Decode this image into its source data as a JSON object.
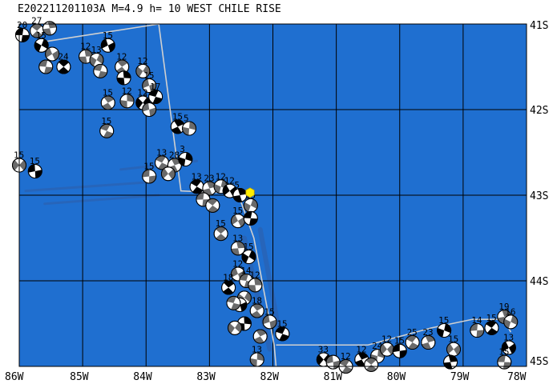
{
  "title": "E202211201103A M=4.9 h= 10 WEST CHILE RISE",
  "map": {
    "lon_range": [
      -86,
      -78
    ],
    "lat_range": [
      -45,
      -41
    ],
    "ocean_color": "#1f6fd0",
    "deep_color": "#2a63b5",
    "grid_color": "#000000",
    "boundary_color": "#d0d0d0",
    "grid_lines": true
  },
  "x_ticks": [
    {
      "lon": -86,
      "label": "86W"
    },
    {
      "lon": -85,
      "label": "85W"
    },
    {
      "lon": -84,
      "label": "84W"
    },
    {
      "lon": -83,
      "label": "83W"
    },
    {
      "lon": -82,
      "label": "82W"
    },
    {
      "lon": -81,
      "label": "81W"
    },
    {
      "lon": -80,
      "label": "80W"
    },
    {
      "lon": -79,
      "label": "79W"
    },
    {
      "lon": -78,
      "label": "78W"
    }
  ],
  "y_ticks": [
    {
      "lat": -41,
      "label": "41S"
    },
    {
      "lat": -42,
      "label": "42S"
    },
    {
      "lat": -43,
      "label": "43S"
    },
    {
      "lat": -44,
      "label": "44S"
    },
    {
      "lat": -45,
      "label": "45S"
    }
  ],
  "event": {
    "lon": -82.36,
    "lat": -42.97,
    "color": "#ffee00",
    "icon": "hexagon-epicenter-icon"
  },
  "plate_boundary": [
    [
      -85.72,
      -41.22
    ],
    [
      -83.8,
      -41.0
    ],
    [
      -83.45,
      -42.95
    ],
    [
      -82.55,
      -42.98
    ],
    [
      -82.3,
      -43.5
    ],
    [
      -81.98,
      -44.75
    ],
    [
      -81.95,
      -45.0
    ]
  ],
  "plate_boundary_east": [
    [
      -81.95,
      -44.75
    ],
    [
      -80.5,
      -44.75
    ],
    [
      -79.5,
      -44.55
    ],
    [
      -78.85,
      -44.45
    ],
    [
      -78.35,
      -44.45
    ],
    [
      -78.25,
      -44.6
    ]
  ],
  "mechanisms": [
    {
      "lon": -85.95,
      "lat": -41.13,
      "label": "20"
    },
    {
      "lon": -85.72,
      "lat": -41.08,
      "label": "27"
    },
    {
      "lon": -85.52,
      "lat": -41.05,
      "label": ""
    },
    {
      "lon": -85.65,
      "lat": -41.25,
      "label": "15"
    },
    {
      "lon": -85.48,
      "lat": -41.35,
      "label": ""
    },
    {
      "lon": -85.58,
      "lat": -41.5,
      "label": ""
    },
    {
      "lon": -85.3,
      "lat": -41.5,
      "label": "24"
    },
    {
      "lon": -84.95,
      "lat": -41.38,
      "label": "12"
    },
    {
      "lon": -84.78,
      "lat": -41.42,
      "label": "13"
    },
    {
      "lon": -84.6,
      "lat": -41.25,
      "label": "15"
    },
    {
      "lon": -84.72,
      "lat": -41.55,
      "label": ""
    },
    {
      "lon": -84.38,
      "lat": -41.5,
      "label": "12"
    },
    {
      "lon": -84.35,
      "lat": -41.63,
      "label": ""
    },
    {
      "lon": -84.05,
      "lat": -41.55,
      "label": "12"
    },
    {
      "lon": -83.95,
      "lat": -41.72,
      "label": "15"
    },
    {
      "lon": -83.85,
      "lat": -41.85,
      "label": "17"
    },
    {
      "lon": -84.6,
      "lat": -41.92,
      "label": "15"
    },
    {
      "lon": -84.3,
      "lat": -41.9,
      "label": "12"
    },
    {
      "lon": -84.05,
      "lat": -41.92,
      "label": "12"
    },
    {
      "lon": -83.95,
      "lat": -42.0,
      "label": ""
    },
    {
      "lon": -84.62,
      "lat": -42.25,
      "label": "15"
    },
    {
      "lon": -83.5,
      "lat": -42.2,
      "label": "15"
    },
    {
      "lon": -83.32,
      "lat": -42.22,
      "label": "5"
    },
    {
      "lon": -86.0,
      "lat": -42.65,
      "label": "15"
    },
    {
      "lon": -85.75,
      "lat": -42.72,
      "label": "15"
    },
    {
      "lon": -83.75,
      "lat": -42.62,
      "label": "13"
    },
    {
      "lon": -83.55,
      "lat": -42.65,
      "label": "28"
    },
    {
      "lon": -83.38,
      "lat": -42.58,
      "label": "3"
    },
    {
      "lon": -83.65,
      "lat": -42.75,
      "label": ""
    },
    {
      "lon": -83.95,
      "lat": -42.78,
      "label": "15"
    },
    {
      "lon": -83.2,
      "lat": -42.9,
      "label": "13"
    },
    {
      "lon": -83.0,
      "lat": -42.92,
      "label": "23"
    },
    {
      "lon": -82.82,
      "lat": -42.9,
      "label": "12"
    },
    {
      "lon": -82.68,
      "lat": -42.95,
      "label": "12"
    },
    {
      "lon": -83.1,
      "lat": -43.05,
      "label": ""
    },
    {
      "lon": -82.95,
      "lat": -43.12,
      "label": ""
    },
    {
      "lon": -82.52,
      "lat": -43.0,
      "label": "5"
    },
    {
      "lon": -82.35,
      "lat": -43.12,
      "label": "15"
    },
    {
      "lon": -82.55,
      "lat": -43.3,
      "label": "15"
    },
    {
      "lon": -82.35,
      "lat": -43.27,
      "label": ""
    },
    {
      "lon": -82.82,
      "lat": -43.45,
      "label": "15"
    },
    {
      "lon": -82.55,
      "lat": -43.62,
      "label": "13"
    },
    {
      "lon": -82.38,
      "lat": -43.72,
      "label": "15"
    },
    {
      "lon": -82.55,
      "lat": -43.92,
      "label": "12"
    },
    {
      "lon": -82.42,
      "lat": -44.0,
      "label": "14"
    },
    {
      "lon": -82.7,
      "lat": -44.08,
      "label": "18"
    },
    {
      "lon": -82.28,
      "lat": -44.05,
      "label": "12"
    },
    {
      "lon": -82.45,
      "lat": -44.2,
      "label": ""
    },
    {
      "lon": -82.52,
      "lat": -44.28,
      "label": ""
    },
    {
      "lon": -82.62,
      "lat": -44.26,
      "label": ""
    },
    {
      "lon": -82.25,
      "lat": -44.35,
      "label": "18"
    },
    {
      "lon": -82.45,
      "lat": -44.5,
      "label": ""
    },
    {
      "lon": -82.6,
      "lat": -44.55,
      "label": ""
    },
    {
      "lon": -82.05,
      "lat": -44.48,
      "label": "15"
    },
    {
      "lon": -81.85,
      "lat": -44.62,
      "label": "15"
    },
    {
      "lon": -82.2,
      "lat": -44.65,
      "label": ""
    },
    {
      "lon": -82.25,
      "lat": -44.92,
      "label": "13"
    },
    {
      "lon": -81.2,
      "lat": -44.92,
      "label": "33"
    },
    {
      "lon": -81.05,
      "lat": -44.95,
      "label": ""
    },
    {
      "lon": -80.85,
      "lat": -45.0,
      "label": "12"
    },
    {
      "lon": -80.6,
      "lat": -44.92,
      "label": "12"
    },
    {
      "lon": -80.35,
      "lat": -44.88,
      "label": "24"
    },
    {
      "lon": -80.2,
      "lat": -44.8,
      "label": "12"
    },
    {
      "lon": -80.0,
      "lat": -44.82,
      "label": "15"
    },
    {
      "lon": -79.8,
      "lat": -44.72,
      "label": "25"
    },
    {
      "lon": -79.55,
      "lat": -44.72,
      "label": "23"
    },
    {
      "lon": -79.3,
      "lat": -44.58,
      "label": "15"
    },
    {
      "lon": -79.15,
      "lat": -44.8,
      "label": "15"
    },
    {
      "lon": -78.78,
      "lat": -44.58,
      "label": "14"
    },
    {
      "lon": -78.55,
      "lat": -44.55,
      "label": "15"
    },
    {
      "lon": -78.35,
      "lat": -44.42,
      "label": "19"
    },
    {
      "lon": -78.25,
      "lat": -44.48,
      "label": "16"
    },
    {
      "lon": -78.28,
      "lat": -44.78,
      "label": "13"
    },
    {
      "lon": -78.35,
      "lat": -44.95,
      "label": "15"
    },
    {
      "lon": -80.45,
      "lat": -44.98,
      "label": ""
    },
    {
      "lon": -79.2,
      "lat": -44.95,
      "label": ""
    }
  ]
}
